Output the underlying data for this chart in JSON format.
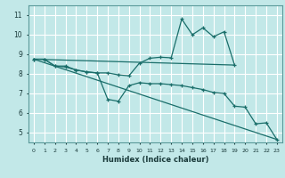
{
  "xlabel": "Humidex (Indice chaleur)",
  "bg_color": "#c2e8e8",
  "grid_color": "#ffffff",
  "line_color": "#1a6e6a",
  "xlim": [
    -0.5,
    23.5
  ],
  "ylim": [
    4.5,
    11.5
  ],
  "xticks": [
    0,
    1,
    2,
    3,
    4,
    5,
    6,
    7,
    8,
    9,
    10,
    11,
    12,
    13,
    14,
    15,
    16,
    17,
    18,
    19,
    20,
    21,
    22,
    23
  ],
  "yticks": [
    5,
    6,
    7,
    8,
    9,
    10,
    11
  ],
  "series1_x": [
    0,
    1,
    2,
    3,
    4,
    5,
    6,
    7,
    8,
    9,
    10,
    11,
    12,
    13,
    14,
    15,
    16,
    17,
    18,
    19
  ],
  "series1_y": [
    8.75,
    8.75,
    8.4,
    8.4,
    8.2,
    8.1,
    8.05,
    8.05,
    7.95,
    7.9,
    8.55,
    8.8,
    8.85,
    8.82,
    10.8,
    10.0,
    10.35,
    9.9,
    10.15,
    8.45
  ],
  "series2_x": [
    0,
    1,
    2,
    3,
    4,
    5,
    6,
    7,
    8,
    9,
    10,
    11,
    12,
    13,
    14,
    15,
    16,
    17,
    18,
    19,
    20,
    21,
    22,
    23
  ],
  "series2_y": [
    8.75,
    8.75,
    8.4,
    8.35,
    8.2,
    8.1,
    8.05,
    6.7,
    6.6,
    7.4,
    7.55,
    7.5,
    7.5,
    7.45,
    7.4,
    7.3,
    7.2,
    7.05,
    7.0,
    6.35,
    6.3,
    5.45,
    5.5,
    4.65
  ],
  "series3_x": [
    0,
    23
  ],
  "series3_y": [
    8.75,
    4.65
  ],
  "series4_x": [
    0,
    19
  ],
  "series4_y": [
    8.75,
    8.45
  ]
}
